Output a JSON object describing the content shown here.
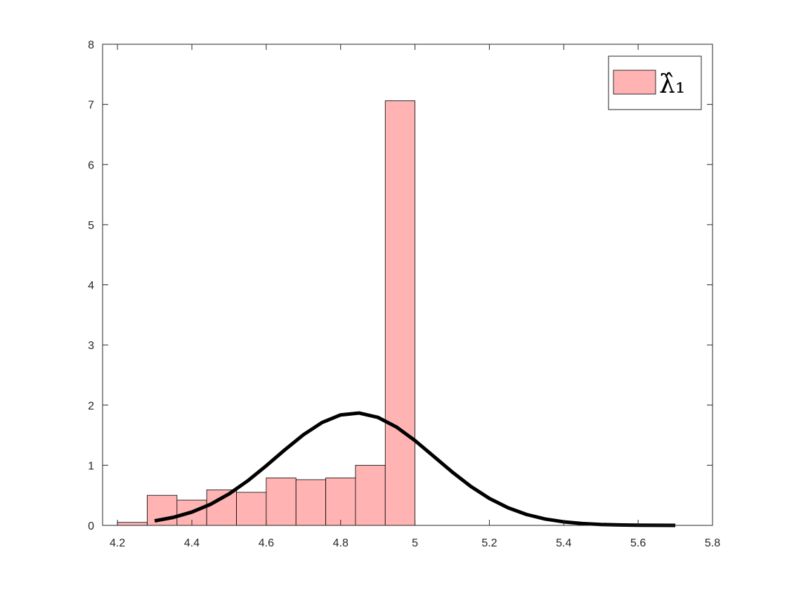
{
  "chart_data": {
    "type": "histogram",
    "bins": [
      4.2,
      4.28,
      4.36,
      4.44,
      4.52,
      4.6,
      4.68,
      4.76,
      4.84,
      4.92,
      5.0
    ],
    "series": [
      {
        "name": "λ̂₁",
        "color": "#ffb3b3",
        "values": [
          0.05,
          0.5,
          0.42,
          0.59,
          0.55,
          0.79,
          0.76,
          0.79,
          1.0,
          7.06
        ]
      }
    ],
    "curve": {
      "color": "#000000",
      "x": [
        4.3,
        4.35,
        4.4,
        4.45,
        4.5,
        4.55,
        4.6,
        4.65,
        4.7,
        4.75,
        4.8,
        4.85,
        4.9,
        4.95,
        5.0,
        5.05,
        5.1,
        5.15,
        5.2,
        5.25,
        5.3,
        5.35,
        5.4,
        5.45,
        5.5,
        5.55,
        5.6,
        5.65,
        5.7
      ],
      "values": [
        0.075,
        0.133,
        0.221,
        0.35,
        0.523,
        0.74,
        0.991,
        1.256,
        1.507,
        1.71,
        1.837,
        1.868,
        1.797,
        1.636,
        1.41,
        1.15,
        0.888,
        0.648,
        0.448,
        0.293,
        0.181,
        0.106,
        0.059,
        0.031,
        0.015,
        0.0072,
        0.0032,
        0.0013,
        0.0005
      ]
    },
    "xlim": [
      4.16,
      5.8
    ],
    "xticks": [
      4.2,
      4.4,
      4.6,
      4.8,
      5,
      5.2,
      5.4,
      5.6,
      5.8
    ],
    "ylim": [
      0,
      8
    ],
    "yticks": [
      0,
      1,
      2,
      3,
      4,
      5,
      6,
      7,
      8
    ],
    "legend": "upper right"
  }
}
